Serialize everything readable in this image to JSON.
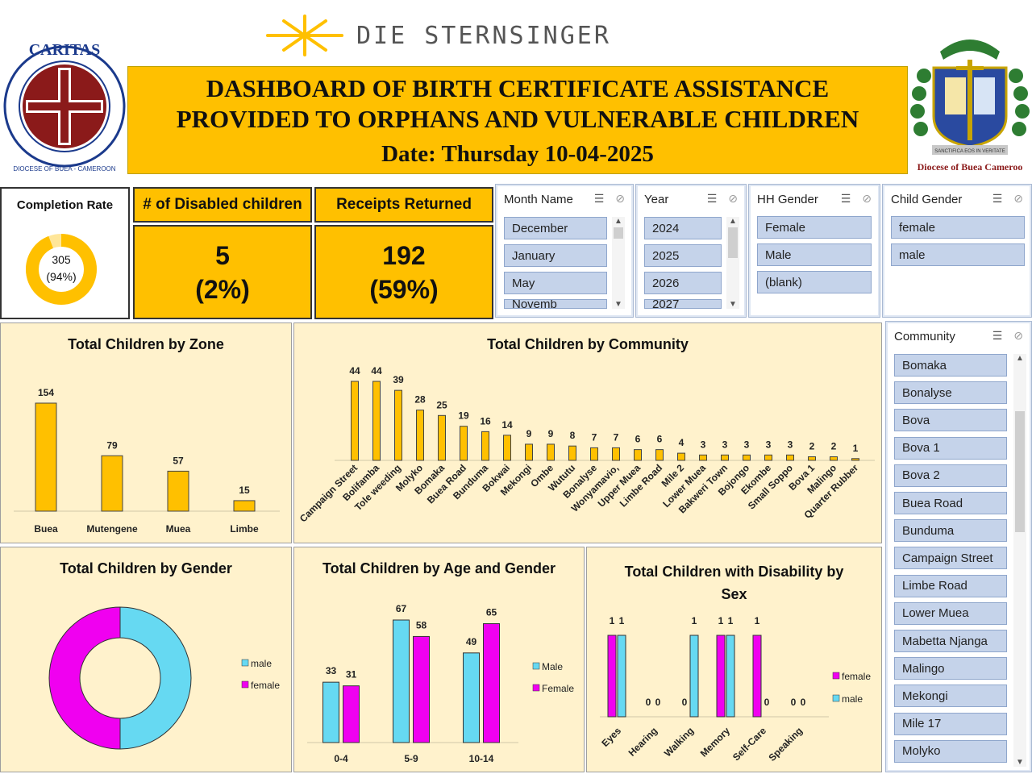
{
  "header": {
    "brand": "DIE STERNSINGER",
    "title_line1": "DASHBOARD OF BIRTH CERTIFICATE ASSISTANCE",
    "title_line2": "PROVIDED TO ORPHANS AND VULNERABLE CHILDREN",
    "date": "Date: Thursday 10-04-2025",
    "logo_left": {
      "top_text": "CARITAS",
      "ring_text": "DIOCESE OF BUEA - CAMEROON"
    },
    "logo_right": {
      "motto": "SANCTIFICA EOS IN VERITATE",
      "caption": "Diocese of Buea Cameroo"
    }
  },
  "kpis": {
    "completion": {
      "label": "Completion Rate",
      "value": "305",
      "pct": "(94%)",
      "fraction": 0.94
    },
    "disabled": {
      "label": "# of Disabled children",
      "value": "5",
      "pct": "(2%)"
    },
    "receipts": {
      "label": "Receipts Returned",
      "value": "192",
      "pct": "(59%)"
    }
  },
  "slicers": {
    "month": {
      "title": "Month Name",
      "items": [
        "December",
        "January",
        "May",
        "Novemb"
      ]
    },
    "year": {
      "title": "Year",
      "items": [
        "2024",
        "2025",
        "2026",
        "2027"
      ]
    },
    "hh_gender": {
      "title": "HH Gender",
      "items": [
        "Female",
        "Male",
        "(blank)"
      ]
    },
    "child_gender": {
      "title": "Child Gender",
      "items": [
        "female",
        "male"
      ]
    },
    "community": {
      "title": "Community",
      "items": [
        "Bomaka",
        "Bonalyse",
        "Bova",
        "Bova 1",
        "Bova 2",
        "Buea Road",
        "Bunduma",
        "Campaign Street",
        "Limbe Road",
        "Lower Muea",
        "Mabetta Njanga",
        "Malingo",
        "Mekongi",
        "Mile 17",
        "Molyko"
      ]
    }
  },
  "colors": {
    "gold": "#FFC000",
    "cream": "#FFF2CC",
    "male": "#66D9F2",
    "female": "#F000F0",
    "slicer_item": "#C5D3EA"
  },
  "chart_data": [
    {
      "type": "bar",
      "title": "Total Children by Zone",
      "categories": [
        "Buea",
        "Mutengene",
        "Muea",
        "Limbe"
      ],
      "values": [
        154,
        79,
        57,
        15
      ]
    },
    {
      "type": "bar",
      "title": "Total Children by Community",
      "categories": [
        "Campaign Street",
        "Bolifamba",
        "Tole weeding",
        "Molyko",
        "Bomaka",
        "Buea Road",
        "Bunduma",
        "Bokwai",
        "Mekongi",
        "Ombe",
        "Wututu",
        "Bonalyse",
        "Wonyamavio,",
        "Upper Muea",
        "Limbe Road",
        "Mile 2",
        "Lower Muea",
        "Bakweri Town",
        "Bojongo",
        "Ekombe",
        "Small Soppo",
        "Bova 1",
        "Malingo",
        "Quarter Rubber"
      ],
      "values": [
        44,
        44,
        39,
        28,
        25,
        19,
        16,
        14,
        9,
        9,
        8,
        7,
        7,
        6,
        6,
        4,
        3,
        3,
        3,
        3,
        3,
        2,
        2,
        1
      ]
    },
    {
      "type": "pie",
      "title": "Total Children by Gender",
      "categories": [
        "male",
        "female"
      ],
      "values": [
        50,
        50
      ]
    },
    {
      "type": "bar",
      "title": "Total Children by Age and Gender",
      "categories": [
        "0-4",
        "5-9",
        "10-14"
      ],
      "series": [
        {
          "name": "Male",
          "values": [
            33,
            67,
            49
          ]
        },
        {
          "name": "Female",
          "values": [
            31,
            58,
            65
          ]
        }
      ]
    },
    {
      "type": "bar",
      "title": "Total Children with Disability by Sex",
      "categories": [
        "Eyes",
        "Hearing",
        "Walking",
        "Memory",
        "Self-Care",
        "Speaking"
      ],
      "series": [
        {
          "name": "female",
          "values": [
            1,
            0,
            0,
            1,
            1,
            0
          ]
        },
        {
          "name": "male",
          "values": [
            1,
            0,
            1,
            1,
            0,
            0
          ]
        }
      ]
    }
  ]
}
